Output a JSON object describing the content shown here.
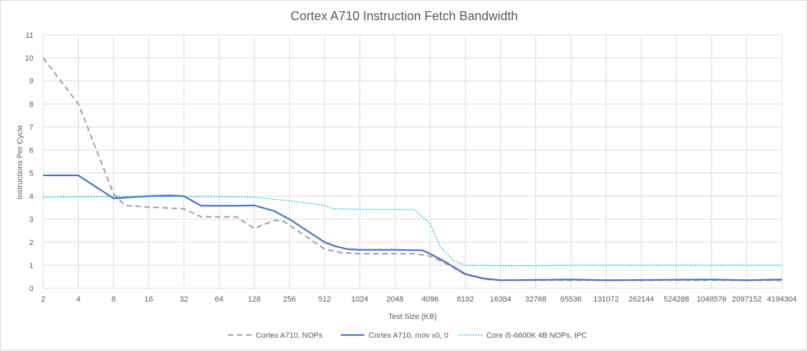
{
  "chart_data": {
    "type": "line",
    "title": "Cortex A710 Instruction Fetch Bandwidth",
    "xlabel": "Test Size (KB)",
    "ylabel": "Instructions Per Cycle",
    "ylim": [
      0,
      11
    ],
    "yticks": [
      "0",
      "1",
      "2",
      "3",
      "4",
      "5",
      "6",
      "7",
      "8",
      "9",
      "10",
      "11"
    ],
    "xlim": [
      2,
      4194304
    ],
    "x_scale": "log2",
    "xticks": [
      "2",
      "4",
      "8",
      "16",
      "32",
      "64",
      "128",
      "256",
      "512",
      "1024",
      "2048",
      "4096",
      "8192",
      "16384",
      "32768",
      "65536",
      "131072",
      "262144",
      "524288",
      "1048576",
      "2097152",
      "4194304"
    ],
    "grid": true,
    "legend_position": "bottom",
    "series": [
      {
        "name": "Cortex A710, NOPs",
        "color": "#a5a5a5",
        "style": "dashed",
        "points": [
          [
            2,
            10
          ],
          [
            4,
            8
          ],
          [
            8,
            4.1
          ],
          [
            10,
            3.6
          ],
          [
            16,
            3.52
          ],
          [
            32,
            3.45
          ],
          [
            45,
            3.1
          ],
          [
            90,
            3.1
          ],
          [
            128,
            2.6
          ],
          [
            190,
            2.95
          ],
          [
            230,
            2.9
          ],
          [
            512,
            1.7
          ],
          [
            700,
            1.55
          ],
          [
            1024,
            1.5
          ],
          [
            3072,
            1.5
          ],
          [
            4096,
            1.4
          ],
          [
            6000,
            1
          ],
          [
            8192,
            0.6
          ],
          [
            12000,
            0.4
          ],
          [
            16384,
            0.35
          ],
          [
            65536,
            0.35
          ],
          [
            4194304,
            0.35
          ]
        ]
      },
      {
        "name": "Cortex A710, mov x0, 0",
        "color": "#4472c4",
        "style": "solid",
        "points": [
          [
            2,
            4.9
          ],
          [
            4,
            4.9
          ],
          [
            8,
            3.9
          ],
          [
            16,
            4
          ],
          [
            24,
            4.03
          ],
          [
            32,
            4
          ],
          [
            45,
            3.58
          ],
          [
            90,
            3.58
          ],
          [
            128,
            3.6
          ],
          [
            190,
            3.35
          ],
          [
            256,
            3
          ],
          [
            512,
            2
          ],
          [
            640,
            1.82
          ],
          [
            800,
            1.7
          ],
          [
            1024,
            1.67
          ],
          [
            2048,
            1.67
          ],
          [
            3500,
            1.65
          ],
          [
            4096,
            1.5
          ],
          [
            5500,
            1.15
          ],
          [
            8192,
            0.62
          ],
          [
            12000,
            0.42
          ],
          [
            16384,
            0.35
          ],
          [
            65536,
            0.38
          ],
          [
            131072,
            0.35
          ],
          [
            1048576,
            0.38
          ],
          [
            2097152,
            0.35
          ],
          [
            4194304,
            0.38
          ]
        ]
      },
      {
        "name": "Core i5-6600K 4B NOPs, IPC",
        "color": "#00b0f0",
        "style": "dotted",
        "points": [
          [
            2,
            3.95
          ],
          [
            4,
            3.97
          ],
          [
            8,
            3.98
          ],
          [
            16,
            3.98
          ],
          [
            32,
            3.98
          ],
          [
            64,
            3.98
          ],
          [
            128,
            3.95
          ],
          [
            256,
            3.8
          ],
          [
            512,
            3.6
          ],
          [
            600,
            3.45
          ],
          [
            1024,
            3.43
          ],
          [
            3000,
            3.42
          ],
          [
            4096,
            2.8
          ],
          [
            5000,
            1.8
          ],
          [
            6500,
            1.2
          ],
          [
            8192,
            1
          ],
          [
            16384,
            0.98
          ],
          [
            32768,
            0.98
          ],
          [
            65536,
            1
          ],
          [
            4194304,
            1
          ]
        ]
      }
    ]
  }
}
